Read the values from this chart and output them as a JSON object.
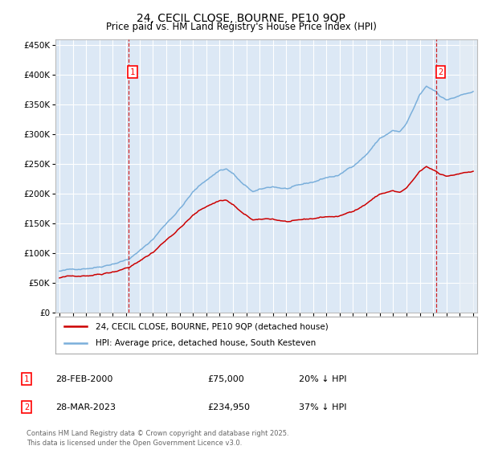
{
  "title": "24, CECIL CLOSE, BOURNE, PE10 9QP",
  "subtitle": "Price paid vs. HM Land Registry's House Price Index (HPI)",
  "legend_red": "24, CECIL CLOSE, BOURNE, PE10 9QP (detached house)",
  "legend_blue": "HPI: Average price, detached house, South Kesteven",
  "annotation1_date": "28-FEB-2000",
  "annotation1_price": "£75,000",
  "annotation1_hpi": "20% ↓ HPI",
  "annotation2_date": "28-MAR-2023",
  "annotation2_price": "£234,950",
  "annotation2_hpi": "37% ↓ HPI",
  "footer": "Contains HM Land Registry data © Crown copyright and database right 2025.\nThis data is licensed under the Open Government Licence v3.0.",
  "fig_bg_color": "#ffffff",
  "plot_bg_color": "#dce8f5",
  "grid_color": "#ffffff",
  "red_color": "#cc0000",
  "blue_color": "#7aafdb",
  "marker1_x_year": 2000.15,
  "marker2_x_year": 2023.23,
  "ylim": [
    0,
    460000
  ],
  "xlim_start": 1994.7,
  "xlim_end": 2026.3,
  "hatch_start": 2025.0,
  "sale1_year": 2000.15,
  "sale1_price": 75000,
  "sale2_year": 2023.23,
  "sale2_price": 234950
}
